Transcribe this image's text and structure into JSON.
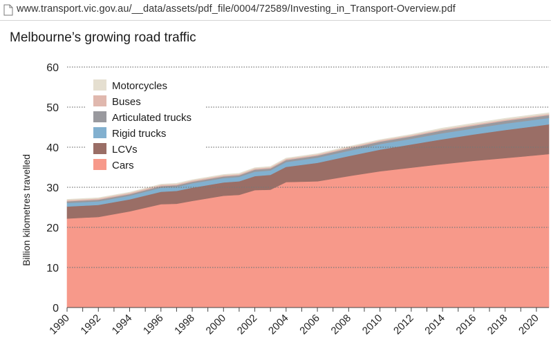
{
  "browser": {
    "url": "www.transport.vic.gov.au/__data/assets/pdf_file/0004/72589/Investing_in_Transport-Overview.pdf",
    "page_icon": "page-icon"
  },
  "chart_data": {
    "type": "area",
    "stacked": true,
    "title": "Melbourne’s growing road traffic",
    "xlabel": "",
    "ylabel": "Billion kilometres travelled",
    "ylim": [
      0,
      60
    ],
    "yticks": [
      0,
      10,
      20,
      30,
      40,
      50,
      60
    ],
    "xlim": [
      1990,
      2020.8
    ],
    "xticks": [
      1990,
      1992,
      1994,
      1996,
      1998,
      2000,
      2002,
      2004,
      2006,
      2008,
      2010,
      2012,
      2014,
      2016,
      2018,
      2020
    ],
    "x": [
      1990,
      1992,
      1994,
      1996,
      1997,
      1998,
      2000,
      2001,
      2002,
      2003,
      2004,
      2006,
      2008,
      2010,
      2012,
      2014,
      2016,
      2018,
      2020,
      2020.8
    ],
    "grid": "dotted horizontal",
    "legend_position": "top-left",
    "series": [
      {
        "name": "Cars",
        "color": "#f7998a",
        "values": [
          22.2,
          22.6,
          24.0,
          25.8,
          25.9,
          26.6,
          27.9,
          28.1,
          29.3,
          29.4,
          31.3,
          31.5,
          32.8,
          34.0,
          34.9,
          35.8,
          36.6,
          37.3,
          38.0,
          38.3
        ]
      },
      {
        "name": "LCVs",
        "color": "#9a6e66",
        "values": [
          3.0,
          3.0,
          3.0,
          3.1,
          3.2,
          3.3,
          3.3,
          3.4,
          3.5,
          3.7,
          3.8,
          4.6,
          5.0,
          5.4,
          5.8,
          6.2,
          6.6,
          7.0,
          7.3,
          7.4
        ]
      },
      {
        "name": "Rigid trucks",
        "color": "#82b0cf",
        "values": [
          0.9,
          0.9,
          0.9,
          1.0,
          1.0,
          1.1,
          1.1,
          1.1,
          1.1,
          1.1,
          1.2,
          1.3,
          1.3,
          1.4,
          1.4,
          1.5,
          1.5,
          1.6,
          1.6,
          1.6
        ]
      },
      {
        "name": "Articulated trucks",
        "color": "#99999e",
        "values": [
          0.4,
          0.4,
          0.4,
          0.4,
          0.4,
          0.4,
          0.4,
          0.4,
          0.5,
          0.5,
          0.5,
          0.5,
          0.6,
          0.6,
          0.6,
          0.7,
          0.7,
          0.7,
          0.7,
          0.7
        ]
      },
      {
        "name": "Buses",
        "color": "#e0b8ae",
        "values": [
          0.3,
          0.3,
          0.3,
          0.3,
          0.3,
          0.3,
          0.3,
          0.3,
          0.3,
          0.3,
          0.3,
          0.3,
          0.3,
          0.3,
          0.3,
          0.3,
          0.3,
          0.3,
          0.3,
          0.3
        ]
      },
      {
        "name": "Motorcycles",
        "color": "#e5dfd0",
        "values": [
          0.2,
          0.2,
          0.2,
          0.2,
          0.2,
          0.2,
          0.2,
          0.2,
          0.2,
          0.2,
          0.2,
          0.2,
          0.2,
          0.2,
          0.2,
          0.3,
          0.3,
          0.3,
          0.3,
          0.3
        ]
      }
    ]
  }
}
